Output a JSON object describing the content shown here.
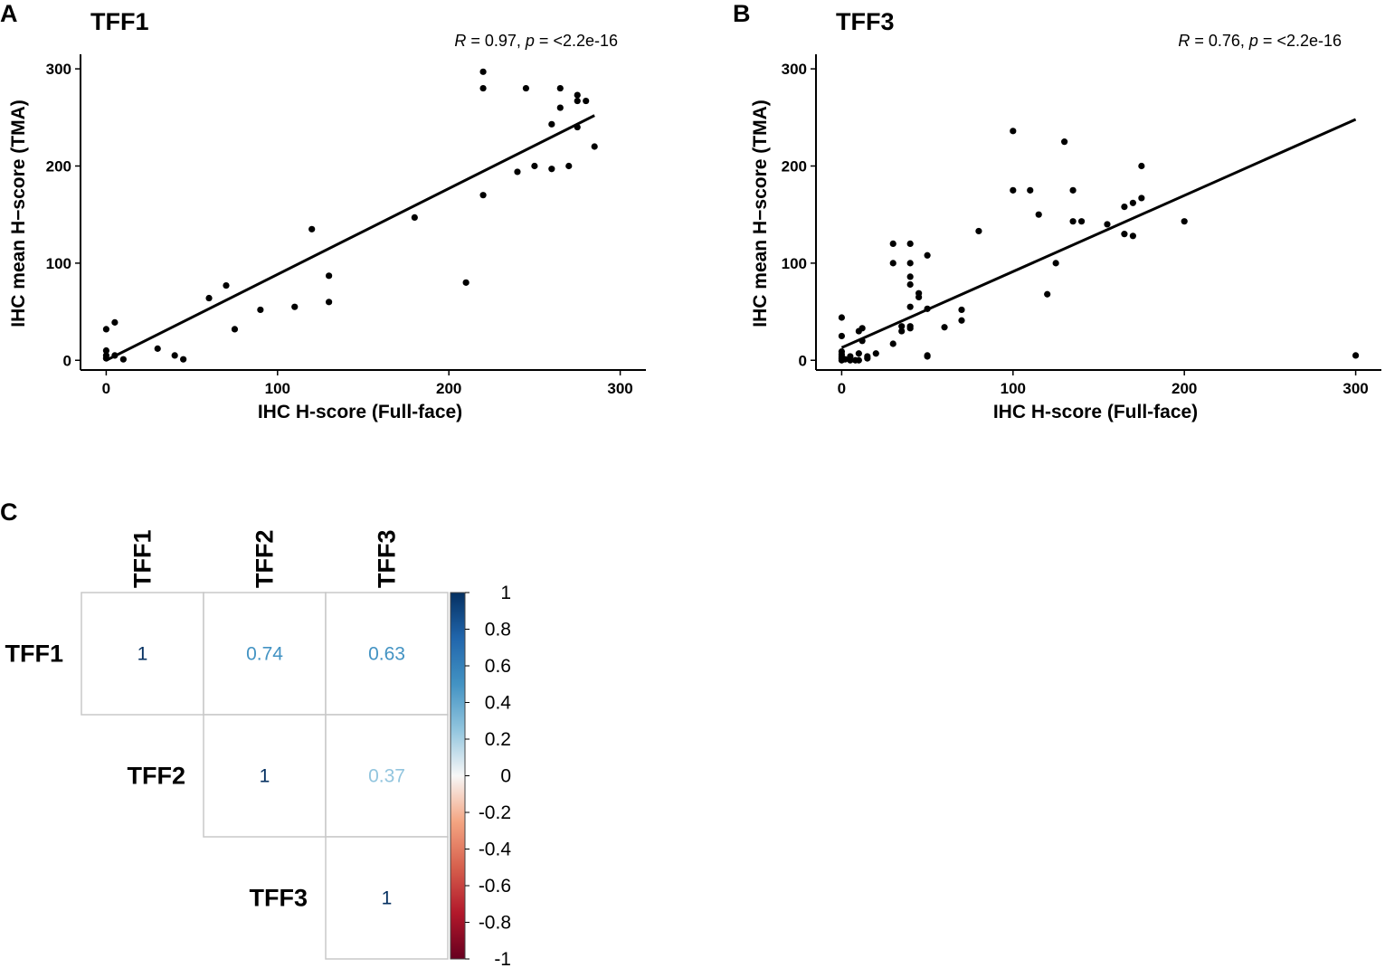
{
  "chart_data": [
    {
      "type": "scatter",
      "panel": "A",
      "title": "TFF1",
      "stat_R": "0.97",
      "stat_p": "<2.2e-16",
      "xlabel": "IHC H-score (Full-face)",
      "ylabel": "IHC mean H−score (TMA)",
      "xlim": [
        -15,
        315
      ],
      "ylim": [
        -10,
        315
      ],
      "xticks": [
        0,
        100,
        200,
        300
      ],
      "yticks": [
        0,
        100,
        200,
        300
      ],
      "regression": {
        "x0": 0,
        "y0": 0,
        "x1": 285,
        "y1": 252
      },
      "points": [
        [
          0,
          2
        ],
        [
          0,
          5
        ],
        [
          0,
          10
        ],
        [
          0,
          32
        ],
        [
          5,
          5
        ],
        [
          5,
          39
        ],
        [
          10,
          1
        ],
        [
          30,
          12
        ],
        [
          40,
          5
        ],
        [
          45,
          1
        ],
        [
          60,
          64
        ],
        [
          70,
          77
        ],
        [
          75,
          32
        ],
        [
          90,
          52
        ],
        [
          110,
          55
        ],
        [
          120,
          135
        ],
        [
          130,
          87
        ],
        [
          130,
          60
        ],
        [
          180,
          147
        ],
        [
          210,
          80
        ],
        [
          220,
          297
        ],
        [
          220,
          280
        ],
        [
          220,
          170
        ],
        [
          240,
          194
        ],
        [
          245,
          280
        ],
        [
          250,
          200
        ],
        [
          260,
          243
        ],
        [
          260,
          197
        ],
        [
          265,
          280
        ],
        [
          265,
          260
        ],
        [
          270,
          200
        ],
        [
          275,
          273
        ],
        [
          275,
          267
        ],
        [
          275,
          240
        ],
        [
          280,
          267
        ],
        [
          285,
          220
        ]
      ]
    },
    {
      "type": "scatter",
      "panel": "B",
      "title": "TFF3",
      "stat_R": "0.76",
      "stat_p": "<2.2e-16",
      "xlabel": "IHC H-score (Full-face)",
      "ylabel": "IHC mean H−score (TMA)",
      "xlim": [
        -15,
        315
      ],
      "ylim": [
        -10,
        315
      ],
      "xticks": [
        0,
        100,
        200,
        300
      ],
      "yticks": [
        0,
        100,
        200,
        300
      ],
      "regression": {
        "x0": 0,
        "y0": 13,
        "x1": 300,
        "y1": 248
      },
      "points": [
        [
          0,
          0
        ],
        [
          0,
          2
        ],
        [
          0,
          4
        ],
        [
          0,
          6
        ],
        [
          0,
          9
        ],
        [
          0,
          25
        ],
        [
          0,
          44
        ],
        [
          2,
          1
        ],
        [
          5,
          0
        ],
        [
          5,
          4
        ],
        [
          8,
          0
        ],
        [
          10,
          0
        ],
        [
          10,
          7
        ],
        [
          10,
          30
        ],
        [
          12,
          33
        ],
        [
          12,
          20
        ],
        [
          15,
          2
        ],
        [
          15,
          4
        ],
        [
          20,
          7
        ],
        [
          30,
          17
        ],
        [
          30,
          100
        ],
        [
          30,
          120
        ],
        [
          35,
          30
        ],
        [
          35,
          35
        ],
        [
          40,
          35
        ],
        [
          40,
          33
        ],
        [
          40,
          55
        ],
        [
          40,
          78
        ],
        [
          40,
          86
        ],
        [
          40,
          100
        ],
        [
          40,
          120
        ],
        [
          45,
          65
        ],
        [
          45,
          69
        ],
        [
          50,
          4
        ],
        [
          50,
          5
        ],
        [
          50,
          53
        ],
        [
          50,
          108
        ],
        [
          60,
          34
        ],
        [
          70,
          41
        ],
        [
          70,
          52
        ],
        [
          80,
          133
        ],
        [
          100,
          236
        ],
        [
          100,
          175
        ],
        [
          110,
          175
        ],
        [
          115,
          150
        ],
        [
          120,
          68
        ],
        [
          125,
          100
        ],
        [
          130,
          225
        ],
        [
          135,
          175
        ],
        [
          135,
          143
        ],
        [
          140,
          143
        ],
        [
          155,
          140
        ],
        [
          165,
          158
        ],
        [
          165,
          130
        ],
        [
          170,
          162
        ],
        [
          170,
          128
        ],
        [
          175,
          200
        ],
        [
          175,
          167
        ],
        [
          200,
          143
        ],
        [
          300,
          5
        ]
      ]
    },
    {
      "type": "heatmap",
      "panel": "C",
      "variables": [
        "TFF1",
        "TFF2",
        "TFF3"
      ],
      "cells": [
        {
          "row": 0,
          "col": 0,
          "value": 1,
          "label": "1"
        },
        {
          "row": 0,
          "col": 1,
          "value": 0.74,
          "label": "0.74"
        },
        {
          "row": 0,
          "col": 2,
          "value": 0.63,
          "label": "0.63"
        },
        {
          "row": 1,
          "col": 1,
          "value": 1,
          "label": "1"
        },
        {
          "row": 1,
          "col": 2,
          "value": 0.37,
          "label": "0.37"
        },
        {
          "row": 2,
          "col": 2,
          "value": 1,
          "label": "1"
        }
      ],
      "legend_range": [
        -1,
        1
      ],
      "legend_ticks": [
        "1",
        "0.8",
        "0.6",
        "0.4",
        "0.2",
        "0",
        "-0.2",
        "-0.4",
        "-0.6",
        "-0.8",
        "-1"
      ],
      "colors": {
        "strong_positive": "#053061",
        "positive": "#2166ac",
        "mid_positive": "#4393c3",
        "light_positive": "#92c5de",
        "neutral": "#f7f7f7",
        "light_negative": "#f4a582",
        "mid_negative": "#d6604d",
        "negative": "#b2182b",
        "strong_negative": "#67001f"
      }
    }
  ]
}
